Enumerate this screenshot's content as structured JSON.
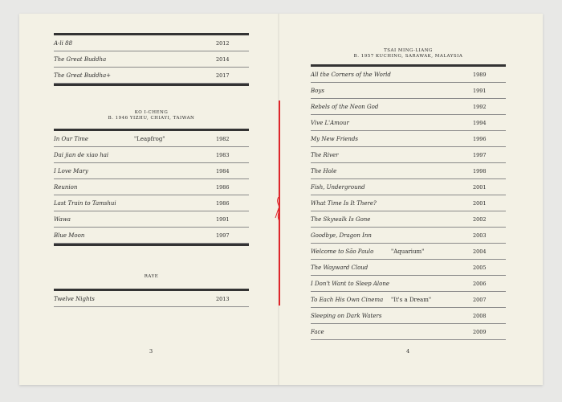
{
  "left_page": {
    "top_table": [
      {
        "title": "A-li 88",
        "note": "",
        "year": "2012"
      },
      {
        "title": "The Great Buddha",
        "note": "",
        "year": "2014"
      },
      {
        "title": "The Great Buddha+",
        "note": "",
        "year": "2017"
      }
    ],
    "ko_header": {
      "name": "KO I-CHENG",
      "birth": "B. 1946 YIZHU, CHIAYI, TAIWAN"
    },
    "ko_table": [
      {
        "title": "In Our Time",
        "note": "\"Leapfrog\"",
        "year": "1982"
      },
      {
        "title": "Dai jian de xiao hai",
        "note": "",
        "year": "1983"
      },
      {
        "title": "I Love Mary",
        "note": "",
        "year": "1984"
      },
      {
        "title": "Reunion",
        "note": "",
        "year": "1986"
      },
      {
        "title": "Last Train to Tamshui",
        "note": "",
        "year": "1986"
      },
      {
        "title": "Wawa",
        "note": "",
        "year": "1991"
      },
      {
        "title": "Blue Moon",
        "note": "",
        "year": "1997"
      }
    ],
    "raye_header": {
      "name": "RAYE"
    },
    "raye_table": [
      {
        "title": "Twelve Nights",
        "note": "",
        "year": "2013"
      }
    ],
    "page_number": "3"
  },
  "right_page": {
    "tsai_header": {
      "name": "TSAI MING-LIANG",
      "birth": "B. 1957 KUCHING, SARAWAK, MALAYSIA"
    },
    "tsai_table": [
      {
        "title": "All the Corners of the World",
        "note": "",
        "year": "1989"
      },
      {
        "title": "Boys",
        "note": "",
        "year": "1991"
      },
      {
        "title": "Rebels of the Neon God",
        "note": "",
        "year": "1992"
      },
      {
        "title": "Vive L'Amour",
        "note": "",
        "year": "1994"
      },
      {
        "title": "My New Friends",
        "note": "",
        "year": "1996"
      },
      {
        "title": "The River",
        "note": "",
        "year": "1997"
      },
      {
        "title": "The Hole",
        "note": "",
        "year": "1998"
      },
      {
        "title": "Fish, Underground",
        "note": "",
        "year": "2001"
      },
      {
        "title": "What Time Is It There?",
        "note": "",
        "year": "2001"
      },
      {
        "title": "The Skywalk Is Gone",
        "note": "",
        "year": "2002"
      },
      {
        "title": "Goodbye, Dragon Inn",
        "note": "",
        "year": "2003"
      },
      {
        "title": "Welcome to São Paulo",
        "note": "\"Aquarium\"",
        "year": "2004"
      },
      {
        "title": "The Wayward Cloud",
        "note": "",
        "year": "2005"
      },
      {
        "title": "I Don't Want to Sleep Alone",
        "note": "",
        "year": "2006"
      },
      {
        "title": "To Each His Own Cinema",
        "note": "\"It's a Dream\"",
        "year": "2007"
      },
      {
        "title": "Sleeping on Dark Waters",
        "note": "",
        "year": "2008"
      },
      {
        "title": "Face",
        "note": "",
        "year": "2009"
      }
    ],
    "page_number": "4"
  },
  "colors": {
    "paper": "#f3f1e5",
    "thread": "#e0252a",
    "rule": "#333333"
  }
}
